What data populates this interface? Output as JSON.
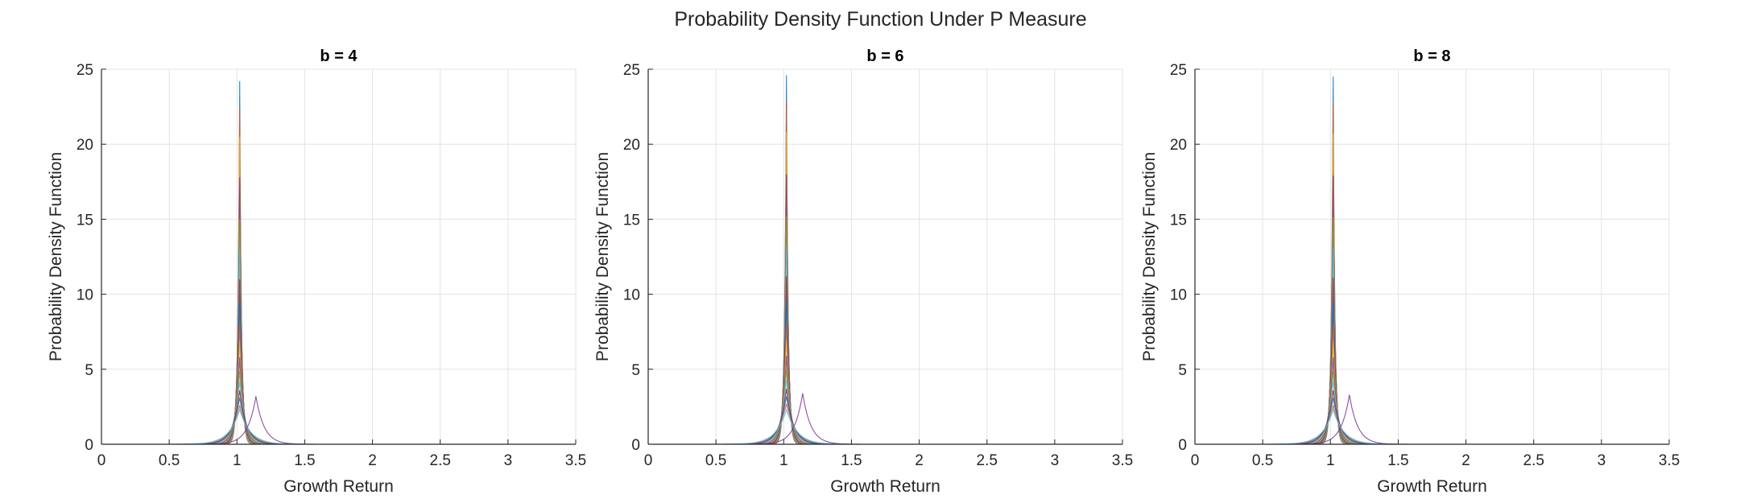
{
  "figure": {
    "title": "Probability Density Function Under P Measure"
  },
  "chart_data": [
    {
      "type": "line",
      "title": "b = 4",
      "xlabel": "Growth Return",
      "ylabel": "Probability Density Function",
      "xlim": [
        0,
        3.5
      ],
      "ylim": [
        0,
        25
      ],
      "xticks": [
        "0",
        "0.5",
        "1",
        "1.5",
        "2",
        "2.5",
        "3",
        "3.5"
      ],
      "yticks": [
        "0",
        "5",
        "10",
        "15",
        "20",
        "25"
      ],
      "grid": true,
      "series_note_peak_x": 1.02,
      "series": [
        {
          "color": "#0072bd",
          "peak": 24.2,
          "width": 0.018
        },
        {
          "color": "#d95319",
          "peak": 22.5,
          "width": 0.019
        },
        {
          "color": "#edb120",
          "peak": 20.5,
          "width": 0.02
        },
        {
          "color": "#7e2f8e",
          "peak": 17.8,
          "width": 0.022
        },
        {
          "color": "#77ac30",
          "peak": 15.0,
          "width": 0.024
        },
        {
          "color": "#4dbeee",
          "peak": 13.0,
          "width": 0.026
        },
        {
          "color": "#a2142f",
          "peak": 11.0,
          "width": 0.029
        },
        {
          "color": "#0072bd",
          "peak": 9.5,
          "width": 0.032
        },
        {
          "color": "#d95319",
          "peak": 8.0,
          "width": 0.036
        },
        {
          "color": "#edb120",
          "peak": 6.8,
          "width": 0.04
        },
        {
          "color": "#7e2f8e",
          "peak": 5.8,
          "width": 0.045
        },
        {
          "color": "#77ac30",
          "peak": 4.9,
          "width": 0.052
        },
        {
          "color": "#4dbeee",
          "peak": 4.2,
          "width": 0.06
        },
        {
          "color": "#a2142f",
          "peak": 3.6,
          "width": 0.07
        },
        {
          "color": "#0072bd",
          "peak": 3.1,
          "width": 0.08
        },
        {
          "color": "#d95319",
          "peak": 2.6,
          "width": 0.095
        },
        {
          "color": "#7e2f8e",
          "peak": 3.2,
          "width": 0.085,
          "center": 1.14
        },
        {
          "color": "#4dbeee",
          "peak": 2.3,
          "width": 0.11
        }
      ]
    },
    {
      "type": "line",
      "title": "b = 6",
      "xlabel": "Growth Return",
      "ylabel": "Probability Density Function",
      "xlim": [
        0,
        3.5
      ],
      "ylim": [
        0,
        25
      ],
      "xticks": [
        "0",
        "0.5",
        "1",
        "1.5",
        "2",
        "2.5",
        "3",
        "3.5"
      ],
      "yticks": [
        "0",
        "5",
        "10",
        "15",
        "20",
        "25"
      ],
      "grid": true,
      "series": [
        {
          "color": "#0072bd",
          "peak": 24.6,
          "width": 0.018
        },
        {
          "color": "#d95319",
          "peak": 22.8,
          "width": 0.019
        },
        {
          "color": "#edb120",
          "peak": 20.8,
          "width": 0.02
        },
        {
          "color": "#7e2f8e",
          "peak": 18.0,
          "width": 0.022
        },
        {
          "color": "#77ac30",
          "peak": 15.2,
          "width": 0.024
        },
        {
          "color": "#4dbeee",
          "peak": 13.2,
          "width": 0.026
        },
        {
          "color": "#a2142f",
          "peak": 11.2,
          "width": 0.029
        },
        {
          "color": "#0072bd",
          "peak": 9.6,
          "width": 0.032
        },
        {
          "color": "#d95319",
          "peak": 8.1,
          "width": 0.036
        },
        {
          "color": "#edb120",
          "peak": 6.9,
          "width": 0.04
        },
        {
          "color": "#7e2f8e",
          "peak": 5.9,
          "width": 0.045
        },
        {
          "color": "#77ac30",
          "peak": 5.0,
          "width": 0.052
        },
        {
          "color": "#4dbeee",
          "peak": 4.3,
          "width": 0.06
        },
        {
          "color": "#a2142f",
          "peak": 3.7,
          "width": 0.07
        },
        {
          "color": "#0072bd",
          "peak": 3.2,
          "width": 0.08
        },
        {
          "color": "#d95319",
          "peak": 2.7,
          "width": 0.095
        },
        {
          "color": "#7e2f8e",
          "peak": 3.4,
          "width": 0.085,
          "center": 1.14
        },
        {
          "color": "#4dbeee",
          "peak": 2.3,
          "width": 0.11
        }
      ]
    },
    {
      "type": "line",
      "title": "b = 8",
      "xlabel": "Growth Return",
      "ylabel": "Probability Density Function",
      "xlim": [
        0,
        3.5
      ],
      "ylim": [
        0,
        25
      ],
      "xticks": [
        "0",
        "0.5",
        "1",
        "1.5",
        "2",
        "2.5",
        "3",
        "3.5"
      ],
      "yticks": [
        "0",
        "5",
        "10",
        "15",
        "20",
        "25"
      ],
      "grid": true,
      "series": [
        {
          "color": "#0072bd",
          "peak": 24.5,
          "width": 0.018
        },
        {
          "color": "#d95319",
          "peak": 22.7,
          "width": 0.019
        },
        {
          "color": "#edb120",
          "peak": 20.7,
          "width": 0.02
        },
        {
          "color": "#7e2f8e",
          "peak": 17.9,
          "width": 0.022
        },
        {
          "color": "#77ac30",
          "peak": 15.1,
          "width": 0.024
        },
        {
          "color": "#4dbeee",
          "peak": 13.1,
          "width": 0.026
        },
        {
          "color": "#a2142f",
          "peak": 11.1,
          "width": 0.029
        },
        {
          "color": "#0072bd",
          "peak": 9.5,
          "width": 0.032
        },
        {
          "color": "#d95319",
          "peak": 8.0,
          "width": 0.036
        },
        {
          "color": "#edb120",
          "peak": 6.8,
          "width": 0.04
        },
        {
          "color": "#7e2f8e",
          "peak": 5.8,
          "width": 0.045
        },
        {
          "color": "#77ac30",
          "peak": 4.9,
          "width": 0.052
        },
        {
          "color": "#4dbeee",
          "peak": 4.2,
          "width": 0.06
        },
        {
          "color": "#a2142f",
          "peak": 3.6,
          "width": 0.07
        },
        {
          "color": "#0072bd",
          "peak": 3.1,
          "width": 0.08
        },
        {
          "color": "#d95319",
          "peak": 2.6,
          "width": 0.095
        },
        {
          "color": "#7e2f8e",
          "peak": 3.3,
          "width": 0.085,
          "center": 1.14
        },
        {
          "color": "#4dbeee",
          "peak": 2.3,
          "width": 0.11
        }
      ]
    }
  ]
}
